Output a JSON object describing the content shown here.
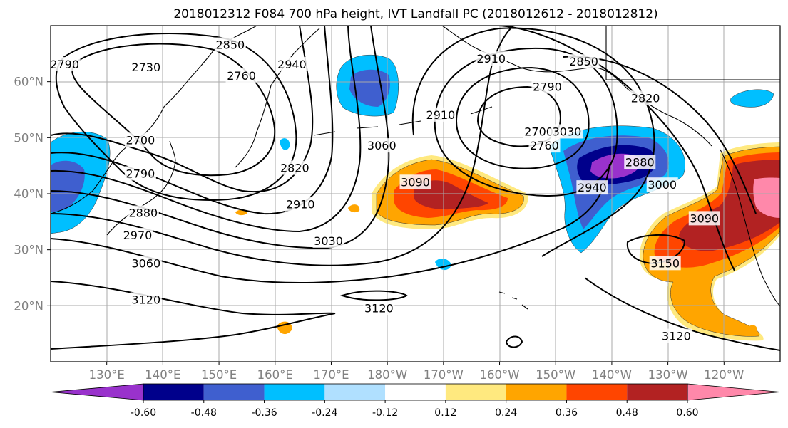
{
  "title": "2018012312 F084 700 hPa height, IVT Landfall PC (2018012612 - 2018012812)",
  "map": {
    "lon_range": [
      120,
      250
    ],
    "lat_range": [
      10,
      70
    ],
    "lat_ticks": [
      {
        "lat": 20,
        "label": "20°N"
      },
      {
        "lat": 30,
        "label": "30°N"
      },
      {
        "lat": 40,
        "label": "40°N"
      },
      {
        "lat": 50,
        "label": "50°N"
      },
      {
        "lat": 60,
        "label": "60°N"
      }
    ],
    "lon_ticks": [
      {
        "lon": 130,
        "label": "130°E"
      },
      {
        "lon": 140,
        "label": "140°E"
      },
      {
        "lon": 150,
        "label": "150°E"
      },
      {
        "lon": 160,
        "label": "160°E"
      },
      {
        "lon": 170,
        "label": "170°E"
      },
      {
        "lon": 180,
        "label": "180°W"
      },
      {
        "lon": 190,
        "label": "170°W"
      },
      {
        "lon": 200,
        "label": "160°W"
      },
      {
        "lon": 210,
        "label": "150°W"
      },
      {
        "lon": 220,
        "label": "140°W"
      },
      {
        "lon": 230,
        "label": "130°W"
      },
      {
        "lon": 240,
        "label": "120°W"
      }
    ],
    "grid": true,
    "contour_labels": [
      {
        "text": "2790",
        "lon": 122.5,
        "lat": 63
      },
      {
        "text": "2730",
        "lon": 137,
        "lat": 62.5
      },
      {
        "text": "2850",
        "lon": 152,
        "lat": 66.5
      },
      {
        "text": "2760",
        "lon": 154,
        "lat": 61
      },
      {
        "text": "2940",
        "lon": 163,
        "lat": 63
      },
      {
        "text": "2700",
        "lon": 136,
        "lat": 49.5
      },
      {
        "text": "2790",
        "lon": 136,
        "lat": 43.5
      },
      {
        "text": "2880",
        "lon": 136.5,
        "lat": 36.5
      },
      {
        "text": "2970",
        "lon": 135.5,
        "lat": 32.5
      },
      {
        "text": "2820",
        "lon": 163.5,
        "lat": 44.5
      },
      {
        "text": "2910",
        "lon": 164.5,
        "lat": 38
      },
      {
        "text": "3060",
        "lon": 179,
        "lat": 48.5
      },
      {
        "text": "3030",
        "lon": 169.5,
        "lat": 31.5
      },
      {
        "text": "3060",
        "lon": 137,
        "lat": 27.5
      },
      {
        "text": "3120",
        "lon": 137,
        "lat": 21
      },
      {
        "text": "3120",
        "lon": 178.5,
        "lat": 19.5
      },
      {
        "text": "3090",
        "lon": 185,
        "lat": 42
      },
      {
        "text": "2910",
        "lon": 198.5,
        "lat": 64
      },
      {
        "text": "2910",
        "lon": 189.5,
        "lat": 54
      },
      {
        "text": "2850",
        "lon": 215,
        "lat": 63.5
      },
      {
        "text": "2790",
        "lon": 208.5,
        "lat": 59
      },
      {
        "text": "2820",
        "lon": 226,
        "lat": 57
      },
      {
        "text": "2700",
        "lon": 207,
        "lat": 51
      },
      {
        "text": "3030",
        "lon": 212,
        "lat": 51
      },
      {
        "text": "2760",
        "lon": 208,
        "lat": 48.5
      },
      {
        "text": "2880",
        "lon": 225,
        "lat": 45.5
      },
      {
        "text": "2940",
        "lon": 216.5,
        "lat": 41
      },
      {
        "text": "3000",
        "lon": 229,
        "lat": 41.5
      },
      {
        "text": "3090",
        "lon": 236.5,
        "lat": 35.5
      },
      {
        "text": "3150",
        "lon": 229.5,
        "lat": 27.5
      },
      {
        "text": "3120",
        "lon": 231.5,
        "lat": 14.5
      }
    ]
  },
  "colorbar": {
    "boundaries": [
      "-0.60",
      "-0.48",
      "-0.36",
      "-0.24",
      "-0.12",
      "0.12",
      "0.24",
      "0.36",
      "0.48",
      "0.60"
    ],
    "colors": [
      "#9932CC",
      "#00008B",
      "#3F5FCF",
      "#00BFFF",
      "#B0E0FF",
      "#FFFFFF",
      "#FFE97F",
      "#FFA500",
      "#FF4500",
      "#B22222",
      "#FF88AA"
    ],
    "extend": "both"
  }
}
